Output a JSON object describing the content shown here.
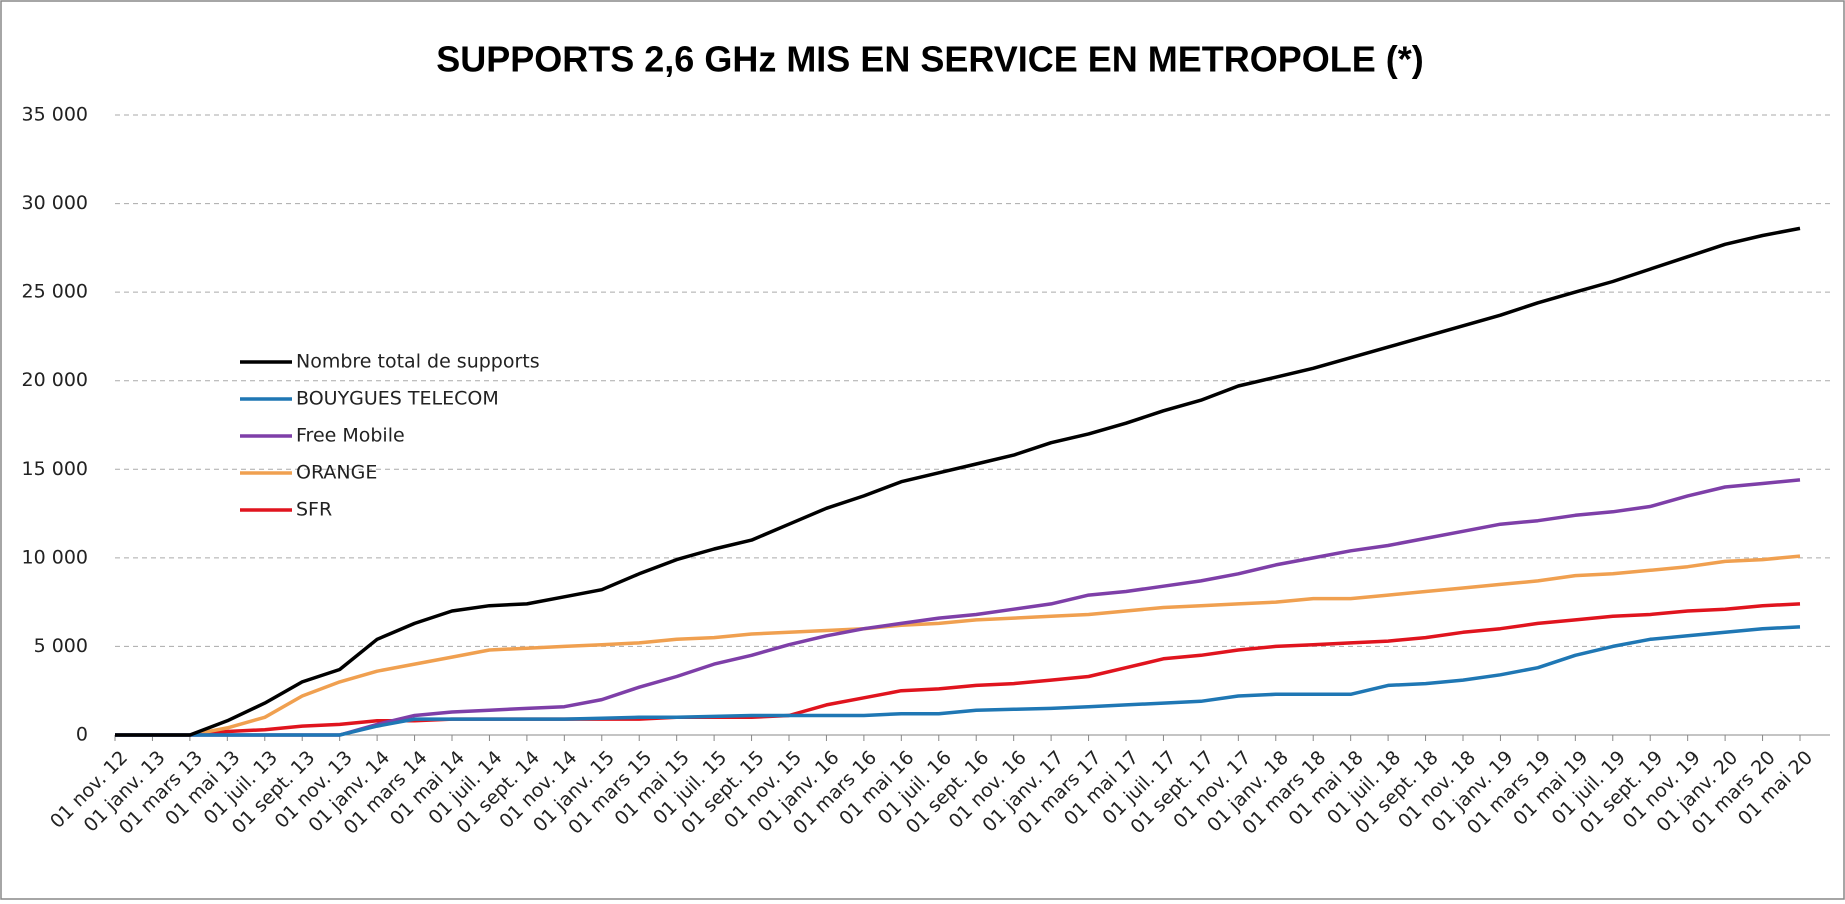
{
  "chart_data": {
    "type": "line",
    "title": "SUPPORTS 2,6 GHz MIS EN SERVICE EN METROPOLE (*)",
    "categories": [
      "01 nov. 12",
      "01 janv. 13",
      "01 mars 13",
      "01 mai 13",
      "01 juil. 13",
      "01 sept. 13",
      "01 nov. 13",
      "01 janv. 14",
      "01 mars 14",
      "01 mai 14",
      "01 juil. 14",
      "01 sept. 14",
      "01 nov. 14",
      "01 janv. 15",
      "01 mars 15",
      "01 mai 15",
      "01 juil. 15",
      "01 sept. 15",
      "01 nov. 15",
      "01 janv. 16",
      "01 mars 16",
      "01 mai 16",
      "01 juil. 16",
      "01 sept. 16",
      "01 nov. 16",
      "01 janv. 17",
      "01 mars 17",
      "01 mai 17",
      "01 juil. 17",
      "01 sept. 17",
      "01 nov. 17",
      "01 janv. 18",
      "01 mars 18",
      "01 mai 18",
      "01 juil. 18",
      "01 sept. 18",
      "01 nov. 18",
      "01 janv. 19",
      "01 mars 19",
      "01 mai 19",
      "01 juil. 19",
      "01 sept. 19",
      "01 nov. 19",
      "01 janv. 20",
      "01 mars 20",
      "01 mai 20"
    ],
    "series": [
      {
        "name": "Nombre total de supports",
        "color": "#000000",
        "values": [
          0,
          0,
          0,
          800,
          1800,
          3000,
          3700,
          5400,
          6300,
          7000,
          7300,
          7400,
          7800,
          8200,
          9100,
          9900,
          10500,
          11000,
          11900,
          12800,
          13500,
          14300,
          14800,
          15300,
          15800,
          16500,
          17000,
          17600,
          18300,
          18900,
          19700,
          20200,
          20700,
          21300,
          21900,
          22500,
          23100,
          23700,
          24400,
          25000,
          25600,
          26300,
          27000,
          27700,
          28200,
          28600
        ]
      },
      {
        "name": "BOUYGUES TELECOM",
        "color": "#1f77b4",
        "values": [
          0,
          0,
          0,
          0,
          0,
          0,
          0,
          500,
          900,
          900,
          900,
          900,
          900,
          950,
          1000,
          1000,
          1050,
          1100,
          1100,
          1100,
          1100,
          1200,
          1200,
          1400,
          1450,
          1500,
          1600,
          1700,
          1800,
          1900,
          2200,
          2300,
          2300,
          2300,
          2800,
          2900,
          3100,
          3400,
          3800,
          4500,
          5000,
          5400,
          5600,
          5800,
          6000,
          6100
        ]
      },
      {
        "name": "Free Mobile",
        "color": "#7e3fa8",
        "values": [
          0,
          0,
          0,
          0,
          0,
          0,
          0,
          600,
          1100,
          1300,
          1400,
          1500,
          1600,
          2000,
          2700,
          3300,
          4000,
          4500,
          5100,
          5600,
          6000,
          6300,
          6600,
          6800,
          7100,
          7400,
          7900,
          8100,
          8400,
          8700,
          9100,
          9600,
          10000,
          10400,
          10700,
          11100,
          11500,
          11900,
          12100,
          12400,
          12600,
          12900,
          13500,
          14000,
          14200,
          14400
        ]
      },
      {
        "name": "ORANGE",
        "color": "#f0a050",
        "values": [
          0,
          0,
          0,
          400,
          1000,
          2200,
          3000,
          3600,
          4000,
          4400,
          4800,
          4900,
          5000,
          5100,
          5200,
          5400,
          5500,
          5700,
          5800,
          5900,
          6000,
          6200,
          6300,
          6500,
          6600,
          6700,
          6800,
          7000,
          7200,
          7300,
          7400,
          7500,
          7700,
          7700,
          7900,
          8100,
          8300,
          8500,
          8700,
          9000,
          9100,
          9300,
          9500,
          9800,
          9900,
          10100
        ]
      },
      {
        "name": "SFR",
        "color": "#e0141e",
        "values": [
          0,
          0,
          0,
          200,
          300,
          500,
          600,
          800,
          800,
          900,
          900,
          900,
          900,
          900,
          900,
          1000,
          1000,
          1000,
          1100,
          1700,
          2100,
          2500,
          2600,
          2800,
          2900,
          3100,
          3300,
          3800,
          4300,
          4500,
          4800,
          5000,
          5100,
          5200,
          5300,
          5500,
          5800,
          6000,
          6300,
          6500,
          6700,
          6800,
          7000,
          7100,
          7300,
          7400
        ]
      }
    ],
    "ylim": [
      0,
      35000
    ],
    "yticks": [
      0,
      {
        "value": 5000,
        "label": "5 000"
      },
      {
        "value": 10000,
        "label": "10 000"
      },
      {
        "value": 15000,
        "label": "15 000"
      },
      {
        "value": 20000,
        "label": "20 000"
      },
      {
        "value": 25000,
        "label": "25 000"
      },
      {
        "value": 30000,
        "label": "30 000"
      },
      {
        "value": 35000,
        "label": "35 000"
      }
    ],
    "grid": true
  }
}
